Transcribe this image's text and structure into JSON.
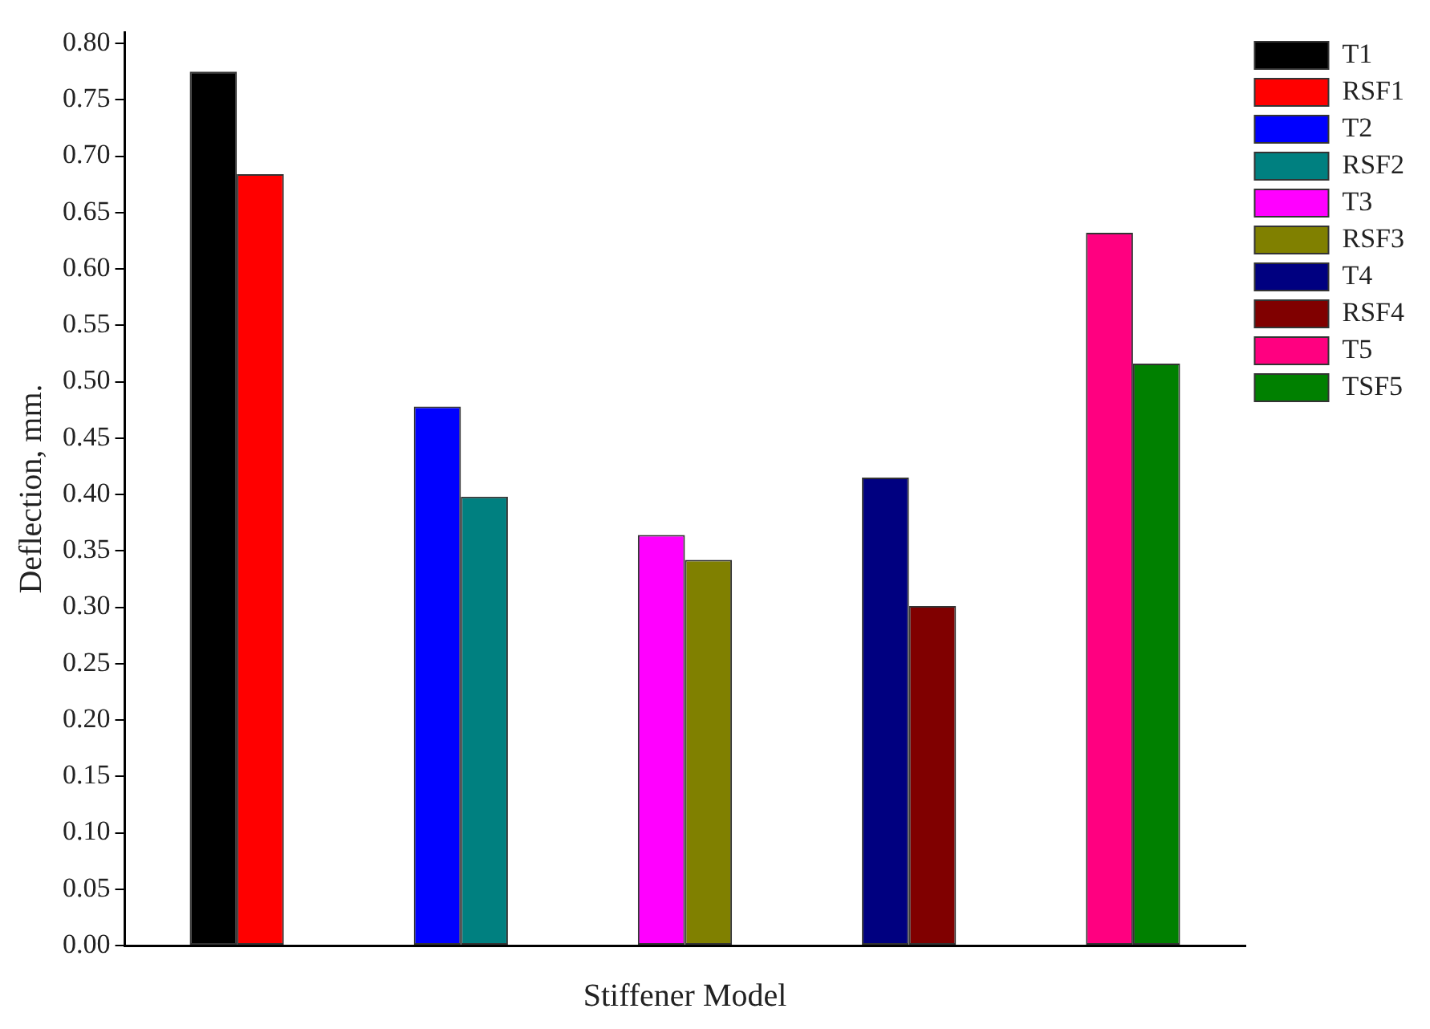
{
  "chart_data": {
    "type": "bar",
    "xlabel": "Stiffener Model",
    "ylabel": "Deflection, mm.",
    "categories": [
      null,
      null,
      null,
      null,
      null
    ],
    "series": [
      {
        "name": "T1",
        "color": "#000000",
        "values": [
          0.775,
          null,
          null,
          null,
          null
        ]
      },
      {
        "name": "RSF1",
        "color": "#ff0000",
        "values": [
          0.684,
          null,
          null,
          null,
          null
        ]
      },
      {
        "name": "T2",
        "color": "#0000ff",
        "values": [
          null,
          0.478,
          null,
          null,
          null
        ]
      },
      {
        "name": "RSF2",
        "color": "#008080",
        "values": [
          null,
          0.398,
          null,
          null,
          null
        ]
      },
      {
        "name": "T3",
        "color": "#ff00ff",
        "values": [
          null,
          null,
          0.364,
          null,
          null
        ]
      },
      {
        "name": "RSF3",
        "color": "#808000",
        "values": [
          null,
          null,
          0.342,
          null,
          null
        ]
      },
      {
        "name": "T4",
        "color": "#000080",
        "values": [
          null,
          null,
          null,
          0.415,
          null
        ]
      },
      {
        "name": "RSF4",
        "color": "#800000",
        "values": [
          null,
          null,
          null,
          0.301,
          null
        ]
      },
      {
        "name": "T5",
        "color": "#ff0080",
        "values": [
          null,
          null,
          null,
          null,
          0.632
        ]
      },
      {
        "name": "TSF5",
        "color": "#008000",
        "values": [
          null,
          null,
          null,
          null,
          0.516
        ]
      }
    ],
    "ylim": [
      0,
      0.81
    ],
    "yticks": [
      {
        "value": 0,
        "label": "0.00"
      },
      {
        "value": 0.05,
        "label": "0.05"
      },
      {
        "value": 0.1,
        "label": "0.10"
      },
      {
        "value": 0.15,
        "label": "0.15"
      },
      {
        "value": 0.2,
        "label": "0.20"
      },
      {
        "value": 0.25,
        "label": "0.25"
      },
      {
        "value": 0.3,
        "label": "0.30"
      },
      {
        "value": 0.35,
        "label": "0.35"
      },
      {
        "value": 0.4,
        "label": "0.40"
      },
      {
        "value": 0.45,
        "label": "0.45"
      },
      {
        "value": 0.5,
        "label": "0.50"
      },
      {
        "value": 0.55,
        "label": "0.55"
      },
      {
        "value": 0.6,
        "label": "0.60"
      },
      {
        "value": 0.65,
        "label": "0.65"
      },
      {
        "value": 0.7,
        "label": "0.70"
      },
      {
        "value": 0.75,
        "label": "0.75"
      },
      {
        "value": 0.8,
        "label": "0.80"
      }
    ],
    "legend": "top right",
    "tick_labels": "y"
  }
}
